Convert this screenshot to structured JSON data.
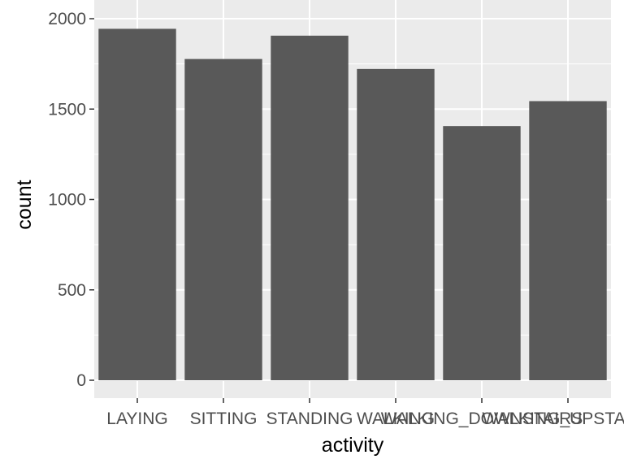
{
  "chart_data": {
    "type": "bar",
    "categories": [
      "LAYING",
      "SITTING",
      "STANDING",
      "WALKING",
      "WALKING_DOWNSTAIRS",
      "WALKING_UPSTAIRS"
    ],
    "values": [
      1944,
      1777,
      1906,
      1722,
      1406,
      1544
    ],
    "title": "",
    "xlabel": "activity",
    "ylabel": "count",
    "ylim": [
      0,
      2000
    ],
    "yticks": [
      0,
      500,
      1000,
      1500,
      2000
    ],
    "grid": true,
    "colors": {
      "bar": "#595959",
      "panel": "#ebebeb",
      "grid": "#ffffff"
    }
  }
}
